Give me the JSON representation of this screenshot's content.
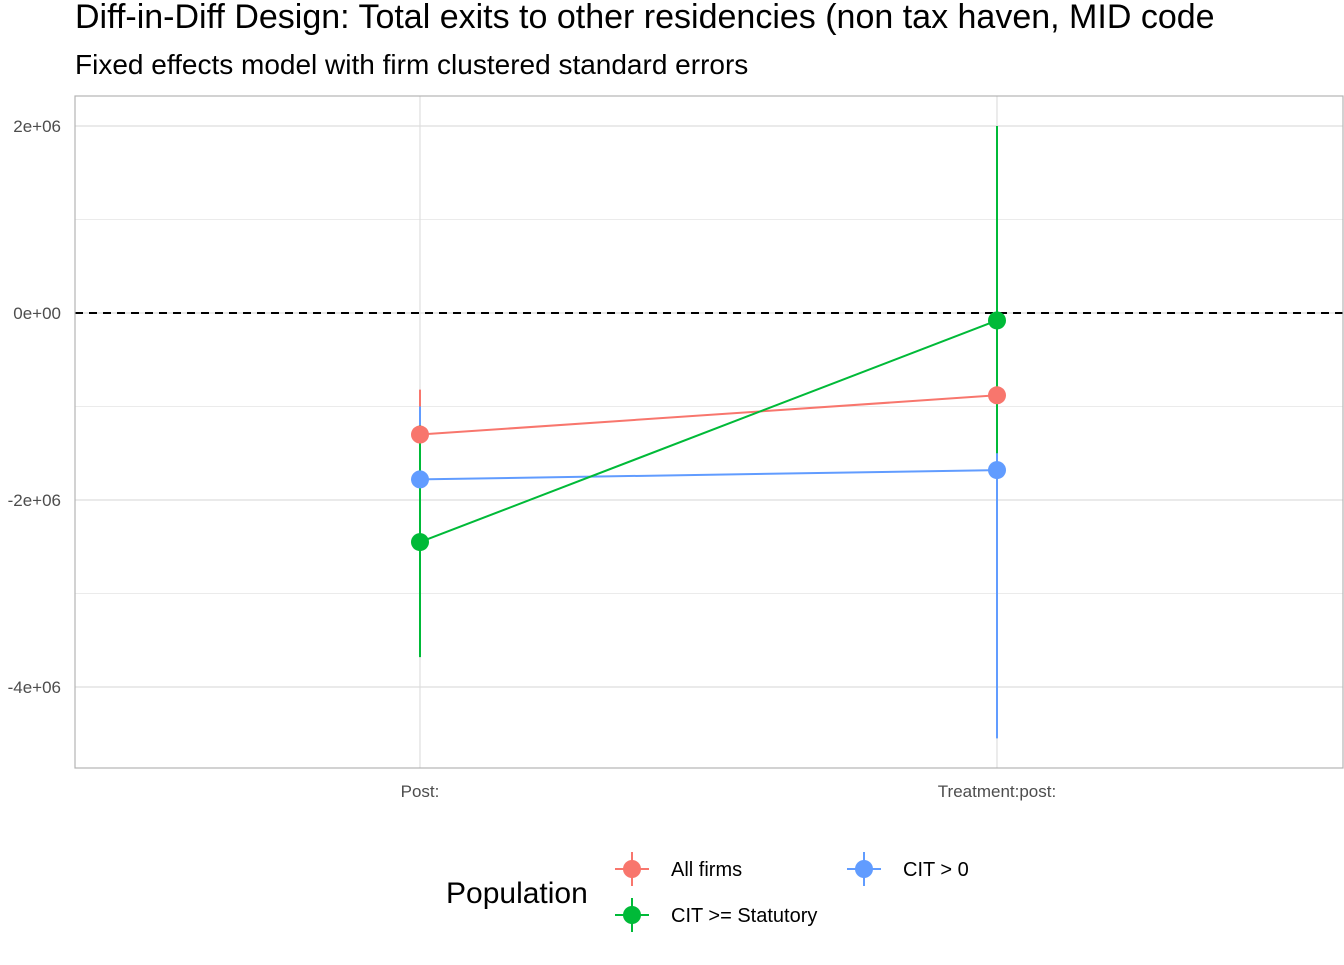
{
  "chart_data": {
    "type": "scatter",
    "title": "Diff-in-Diff Design: Total exits to other residencies (non tax haven, MID code",
    "subtitle": "Fixed effects model with firm clustered standard errors",
    "xlabel": "",
    "ylabel": "",
    "categories": [
      "Post:",
      "Treatment:post:"
    ],
    "ylim": [
      -4850000,
      2330000
    ],
    "yticks": [
      2000000,
      0,
      -2000000,
      -4000000
    ],
    "ytick_labels": [
      "2e+06",
      "0e+00",
      "-2e+06",
      "-4e+06"
    ],
    "reference_line": 0,
    "grid": true,
    "legend": {
      "title": "Population",
      "position": "bottom"
    },
    "series": [
      {
        "name": "All firms",
        "color": "#F8766D",
        "values": [
          -1300000,
          -880000
        ],
        "ci_low": [
          -2200000,
          -1100000
        ],
        "ci_high": [
          -820000,
          -650000
        ]
      },
      {
        "name": "CIT >= Statutory",
        "color": "#00BA38",
        "values": [
          -2450000,
          -80000
        ],
        "ci_low": [
          -3680000,
          -1500000
        ],
        "ci_high": [
          -1200000,
          2000000
        ]
      },
      {
        "name": "CIT > 0",
        "color": "#619CFF",
        "values": [
          -1780000,
          -1680000
        ],
        "ci_low": [
          -2550000,
          -4550000
        ],
        "ci_high": [
          -1000000,
          1200000
        ]
      }
    ]
  }
}
